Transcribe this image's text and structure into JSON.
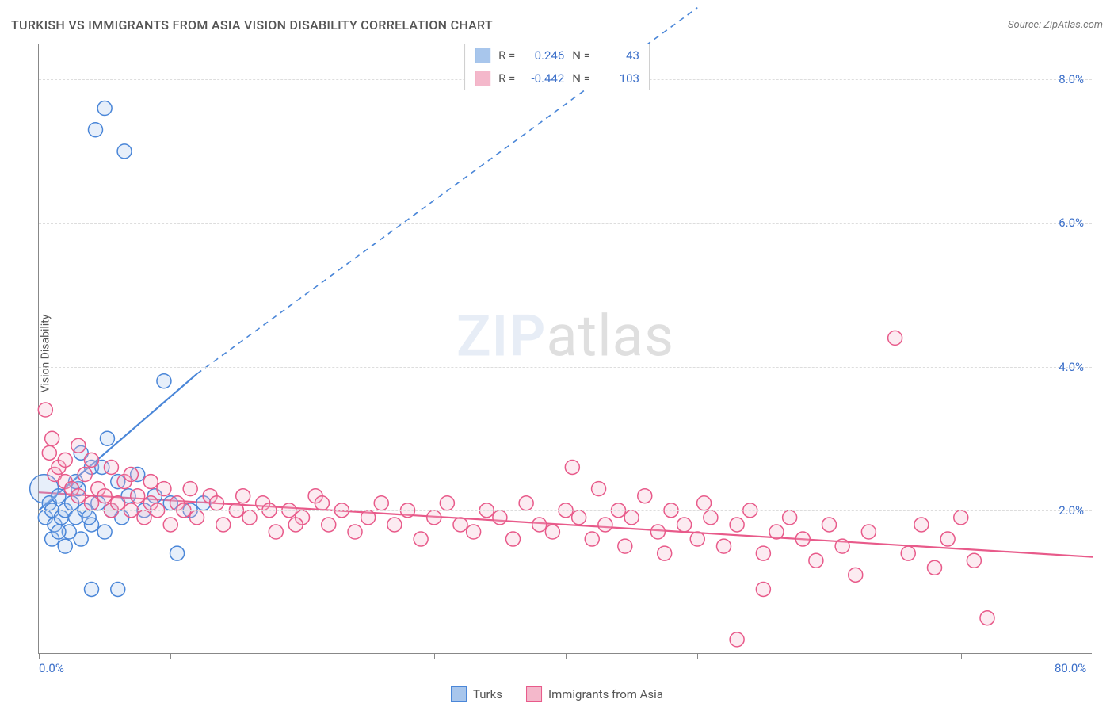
{
  "title": "TURKISH VS IMMIGRANTS FROM ASIA VISION DISABILITY CORRELATION CHART",
  "source": "Source: ZipAtlas.com",
  "ylabel": "Vision Disability",
  "watermark": {
    "bold": "ZIP",
    "rest": "atlas"
  },
  "chart": {
    "type": "scatter",
    "xlim": [
      0,
      80
    ],
    "ylim": [
      0,
      8.5
    ],
    "x_ticks": [
      0,
      10,
      20,
      30,
      40,
      50,
      60,
      70,
      80
    ],
    "x_tick_labels": {
      "0": "0.0%",
      "80": "80.0%"
    },
    "y_gridlines": [
      2,
      4,
      6,
      8
    ],
    "y_tick_labels": {
      "2": "2.0%",
      "4": "4.0%",
      "6": "6.0%",
      "8": "8.0%"
    },
    "grid_color": "#dddddd",
    "axis_color": "#888888",
    "background_color": "#ffffff",
    "marker_radius": 9,
    "marker_radius_large": 18,
    "marker_stroke_width": 1.5,
    "marker_fill_opacity": 0.28,
    "series": [
      {
        "name": "Turks",
        "color_stroke": "#4a86d8",
        "color_fill": "#a8c6ec",
        "stats": {
          "R": "0.246",
          "N": "43"
        },
        "trend": {
          "solid": {
            "x1": 0,
            "y1": 2.0,
            "x2": 12,
            "y2": 3.9
          },
          "dashed": {
            "x1": 12,
            "y1": 3.9,
            "x2": 50,
            "y2": 10.0
          },
          "stroke_width": 2.2
        },
        "points": [
          [
            0.4,
            2.3,
            18
          ],
          [
            0.5,
            1.9,
            9
          ],
          [
            0.8,
            2.1,
            9
          ],
          [
            1.0,
            2.0,
            9
          ],
          [
            1.2,
            1.8,
            9
          ],
          [
            1.5,
            2.2,
            9
          ],
          [
            1.7,
            1.9,
            9
          ],
          [
            2.0,
            2.0,
            9
          ],
          [
            2.3,
            1.7,
            9
          ],
          [
            2.5,
            2.1,
            9
          ],
          [
            2.8,
            1.9,
            9
          ],
          [
            3.0,
            2.3,
            9
          ],
          [
            3.2,
            1.6,
            9
          ],
          [
            3.5,
            2.0,
            9
          ],
          [
            4.0,
            1.8,
            9
          ],
          [
            4.0,
            2.6,
            9
          ],
          [
            4.5,
            2.1,
            9
          ],
          [
            5.0,
            1.7,
            9
          ],
          [
            5.2,
            3.0,
            9
          ],
          [
            5.5,
            2.0,
            9
          ],
          [
            6.0,
            2.4,
            9
          ],
          [
            6.3,
            1.9,
            9
          ],
          [
            6.8,
            2.2,
            9
          ],
          [
            7.5,
            2.5,
            9
          ],
          [
            8.0,
            2.0,
            9
          ],
          [
            8.8,
            2.2,
            9
          ],
          [
            9.5,
            3.8,
            9
          ],
          [
            10.0,
            2.1,
            9
          ],
          [
            10.5,
            1.4,
            9
          ],
          [
            11.5,
            2.0,
            9
          ],
          [
            12.5,
            2.1,
            9
          ],
          [
            3.2,
            2.8,
            9
          ],
          [
            4.8,
            2.6,
            9
          ],
          [
            1.0,
            1.6,
            9
          ],
          [
            2.0,
            1.5,
            9
          ],
          [
            5.0,
            7.6,
            9
          ],
          [
            4.3,
            7.3,
            9
          ],
          [
            6.5,
            7.0,
            9
          ],
          [
            6.0,
            0.9,
            9
          ],
          [
            4.0,
            0.9,
            9
          ],
          [
            1.5,
            1.7,
            9
          ],
          [
            2.8,
            2.4,
            9
          ],
          [
            3.8,
            1.9,
            9
          ]
        ]
      },
      {
        "name": "Immigrants from Asia",
        "color_stroke": "#e85a8a",
        "color_fill": "#f4b8cb",
        "stats": {
          "R": "-0.442",
          "N": "103"
        },
        "trend": {
          "solid": {
            "x1": 0,
            "y1": 2.25,
            "x2": 80,
            "y2": 1.35
          },
          "dashed": null,
          "stroke_width": 2.2
        },
        "points": [
          [
            0.5,
            3.4,
            9
          ],
          [
            0.8,
            2.8,
            9
          ],
          [
            1.0,
            3.0,
            9
          ],
          [
            1.2,
            2.5,
            9
          ],
          [
            1.5,
            2.6,
            9
          ],
          [
            2.0,
            2.4,
            9
          ],
          [
            2.0,
            2.7,
            9
          ],
          [
            2.5,
            2.3,
            9
          ],
          [
            3.0,
            2.2,
            9
          ],
          [
            3.5,
            2.5,
            9
          ],
          [
            4.0,
            2.1,
            9
          ],
          [
            4.5,
            2.3,
            9
          ],
          [
            5.0,
            2.2,
            9
          ],
          [
            5.5,
            2.0,
            9
          ],
          [
            6.0,
            2.1,
            9
          ],
          [
            6.5,
            2.4,
            9
          ],
          [
            7.0,
            2.0,
            9
          ],
          [
            7.5,
            2.2,
            9
          ],
          [
            8.0,
            1.9,
            9
          ],
          [
            8.5,
            2.1,
            9
          ],
          [
            9.0,
            2.0,
            9
          ],
          [
            9.5,
            2.3,
            9
          ],
          [
            10.0,
            1.8,
            9
          ],
          [
            10.5,
            2.1,
            9
          ],
          [
            11.0,
            2.0,
            9
          ],
          [
            12.0,
            1.9,
            9
          ],
          [
            13.0,
            2.2,
            9
          ],
          [
            14.0,
            1.8,
            9
          ],
          [
            15.0,
            2.0,
            9
          ],
          [
            16.0,
            1.9,
            9
          ],
          [
            17.0,
            2.1,
            9
          ],
          [
            18.0,
            1.7,
            9
          ],
          [
            19.0,
            2.0,
            9
          ],
          [
            20.0,
            1.9,
            9
          ],
          [
            21.0,
            2.2,
            9
          ],
          [
            22.0,
            1.8,
            9
          ],
          [
            23.0,
            2.0,
            9
          ],
          [
            24.0,
            1.7,
            9
          ],
          [
            25.0,
            1.9,
            9
          ],
          [
            26.0,
            2.1,
            9
          ],
          [
            27.0,
            1.8,
            9
          ],
          [
            28.0,
            2.0,
            9
          ],
          [
            29.0,
            1.6,
            9
          ],
          [
            30.0,
            1.9,
            9
          ],
          [
            31.0,
            2.1,
            9
          ],
          [
            32.0,
            1.8,
            9
          ],
          [
            33.0,
            1.7,
            9
          ],
          [
            34.0,
            2.0,
            9
          ],
          [
            35.0,
            1.9,
            9
          ],
          [
            36.0,
            1.6,
            9
          ],
          [
            37.0,
            2.1,
            9
          ],
          [
            38.0,
            1.8,
            9
          ],
          [
            39.0,
            1.7,
            9
          ],
          [
            40.0,
            2.0,
            9
          ],
          [
            40.5,
            2.6,
            9
          ],
          [
            41.0,
            1.9,
            9
          ],
          [
            42.0,
            1.6,
            9
          ],
          [
            42.5,
            2.3,
            9
          ],
          [
            43.0,
            1.8,
            9
          ],
          [
            44.0,
            2.0,
            9
          ],
          [
            44.5,
            1.5,
            9
          ],
          [
            45.0,
            1.9,
            9
          ],
          [
            46.0,
            2.2,
            9
          ],
          [
            47.0,
            1.7,
            9
          ],
          [
            47.5,
            1.4,
            9
          ],
          [
            48.0,
            2.0,
            9
          ],
          [
            49.0,
            1.8,
            9
          ],
          [
            50.0,
            1.6,
            9
          ],
          [
            50.5,
            2.1,
            9
          ],
          [
            51.0,
            1.9,
            9
          ],
          [
            52.0,
            1.5,
            9
          ],
          [
            53.0,
            1.8,
            9
          ],
          [
            54.0,
            2.0,
            9
          ],
          [
            55.0,
            1.4,
            9
          ],
          [
            55.0,
            0.9,
            9
          ],
          [
            56.0,
            1.7,
            9
          ],
          [
            57.0,
            1.9,
            9
          ],
          [
            58.0,
            1.6,
            9
          ],
          [
            59.0,
            1.3,
            9
          ],
          [
            60.0,
            1.8,
            9
          ],
          [
            61.0,
            1.5,
            9
          ],
          [
            62.0,
            1.1,
            9
          ],
          [
            63.0,
            1.7,
            9
          ],
          [
            65.0,
            4.4,
            9
          ],
          [
            66.0,
            1.4,
            9
          ],
          [
            67.0,
            1.8,
            9
          ],
          [
            68.0,
            1.2,
            9
          ],
          [
            69.0,
            1.6,
            9
          ],
          [
            70.0,
            1.9,
            9
          ],
          [
            71.0,
            1.3,
            9
          ],
          [
            72.0,
            0.5,
            9
          ],
          [
            53.0,
            0.2,
            9
          ],
          [
            3.0,
            2.9,
            9
          ],
          [
            4.0,
            2.7,
            9
          ],
          [
            5.5,
            2.6,
            9
          ],
          [
            7.0,
            2.5,
            9
          ],
          [
            8.5,
            2.4,
            9
          ],
          [
            11.5,
            2.3,
            9
          ],
          [
            13.5,
            2.1,
            9
          ],
          [
            15.5,
            2.2,
            9
          ],
          [
            17.5,
            2.0,
            9
          ],
          [
            19.5,
            1.8,
            9
          ],
          [
            21.5,
            2.1,
            9
          ]
        ]
      }
    ],
    "stats_box": {
      "rows": [
        {
          "swatch_fill": "#a8c6ec",
          "swatch_stroke": "#4a86d8",
          "R": "0.246",
          "N": "43"
        },
        {
          "swatch_fill": "#f4b8cb",
          "swatch_stroke": "#e85a8a",
          "R": "-0.442",
          "N": "103"
        }
      ],
      "label_R": "R =",
      "label_N": "N ="
    },
    "bottom_legend": [
      {
        "swatch_fill": "#a8c6ec",
        "swatch_stroke": "#4a86d8",
        "label": "Turks"
      },
      {
        "swatch_fill": "#f4b8cb",
        "swatch_stroke": "#e85a8a",
        "label": "Immigrants from Asia"
      }
    ]
  }
}
